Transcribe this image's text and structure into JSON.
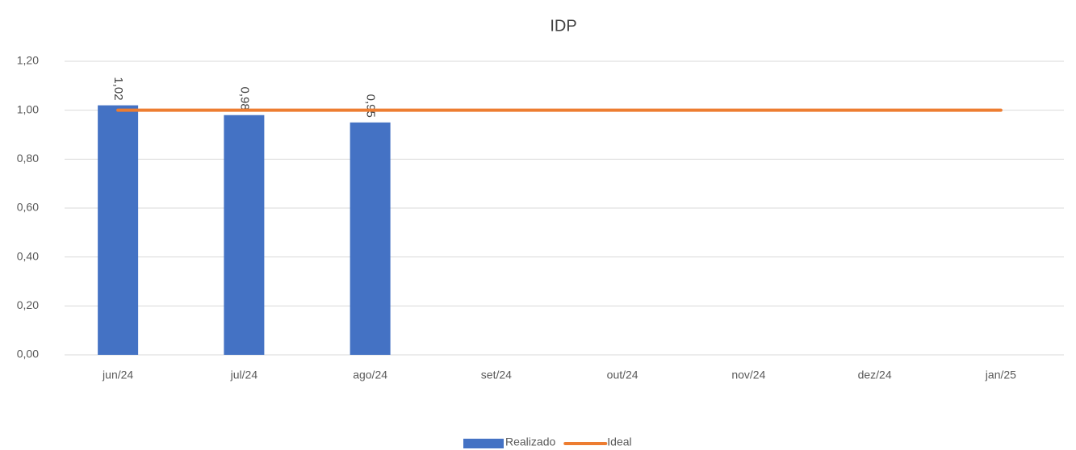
{
  "chart_data": {
    "type": "bar",
    "title": "IDP",
    "categories": [
      "jun/24",
      "jul/24",
      "ago/24",
      "set/24",
      "out/24",
      "nov/24",
      "dez/24",
      "jan/25"
    ],
    "series": [
      {
        "name": "Realizado",
        "type": "bar",
        "color": "#4472c4",
        "values": [
          1.02,
          0.98,
          0.95,
          null,
          null,
          null,
          null,
          null
        ],
        "value_labels": [
          "1,02",
          "0,98",
          "0,95",
          null,
          null,
          null,
          null,
          null
        ]
      },
      {
        "name": "Ideal",
        "type": "line",
        "color": "#ed7d31",
        "values": [
          1,
          1,
          1,
          1,
          1,
          1,
          1,
          1
        ]
      }
    ],
    "ylim": [
      0,
      1.2
    ],
    "yticks": [
      {
        "value": 0,
        "label": "0,00"
      },
      {
        "value": 0.2,
        "label": "0,20"
      },
      {
        "value": 0.4,
        "label": "0,40"
      },
      {
        "value": 0.6,
        "label": "0,60"
      },
      {
        "value": 0.8,
        "label": "0,80"
      },
      {
        "value": 1,
        "label": "1,00"
      },
      {
        "value": 1.2,
        "label": "1,20"
      }
    ],
    "grid": true,
    "legend": "bottom"
  }
}
